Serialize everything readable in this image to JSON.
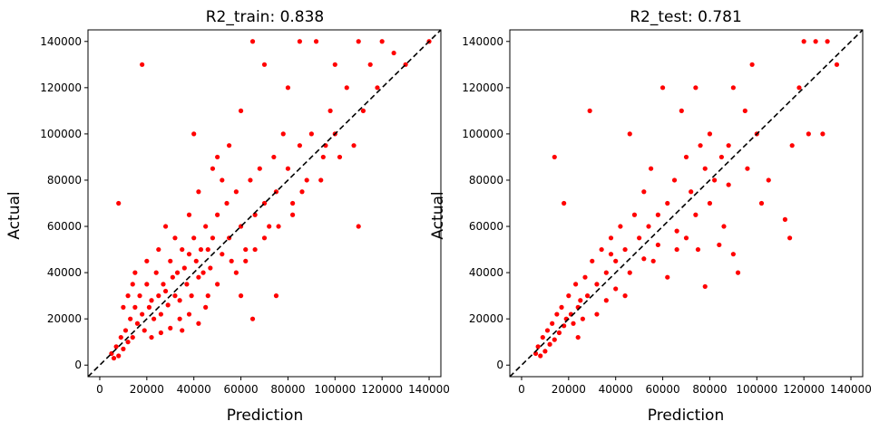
{
  "figure": {
    "background": "#ffffff",
    "point_color": "#ff0000",
    "line_color": "#000000"
  },
  "chart_data": [
    {
      "type": "scatter",
      "title": "R2_train: 0.838",
      "xlabel": "Prediction",
      "ylabel": "Actual",
      "xlim": [
        -5000,
        145000
      ],
      "ylim": [
        -5000,
        145000
      ],
      "xticks": [
        0,
        20000,
        40000,
        60000,
        80000,
        100000,
        120000,
        140000
      ],
      "yticks": [
        0,
        20000,
        40000,
        60000,
        80000,
        100000,
        120000,
        140000
      ],
      "grid": false,
      "reference_line": {
        "style": "dashed",
        "from": [
          -5000,
          -5000
        ],
        "to": [
          145000,
          145000
        ]
      },
      "series": [
        {
          "color": "#ff0000",
          "points": [
            [
              5000,
              5000
            ],
            [
              6000,
              3000
            ],
            [
              7000,
              8000
            ],
            [
              8000,
              4000
            ],
            [
              9000,
              12000
            ],
            [
              10000,
              7000
            ],
            [
              11000,
              15000
            ],
            [
              12000,
              10000
            ],
            [
              13000,
              20000
            ],
            [
              14000,
              12000
            ],
            [
              15000,
              25000
            ],
            [
              16000,
              18000
            ],
            [
              17000,
              30000
            ],
            [
              18000,
              22000
            ],
            [
              19000,
              15000
            ],
            [
              20000,
              35000
            ],
            [
              21000,
              25000
            ],
            [
              22000,
              28000
            ],
            [
              23000,
              20000
            ],
            [
              24000,
              40000
            ],
            [
              25000,
              30000
            ],
            [
              26000,
              22000
            ],
            [
              27000,
              35000
            ],
            [
              28000,
              32000
            ],
            [
              29000,
              26000
            ],
            [
              30000,
              45000
            ],
            [
              31000,
              38000
            ],
            [
              32000,
              30000
            ],
            [
              33000,
              40000
            ],
            [
              34000,
              28000
            ],
            [
              35000,
              50000
            ],
            [
              36000,
              42000
            ],
            [
              37000,
              35000
            ],
            [
              38000,
              48000
            ],
            [
              39000,
              30000
            ],
            [
              40000,
              55000
            ],
            [
              41000,
              45000
            ],
            [
              42000,
              38000
            ],
            [
              43000,
              50000
            ],
            [
              44000,
              40000
            ],
            [
              45000,
              60000
            ],
            [
              46000,
              50000
            ],
            [
              47000,
              42000
            ],
            [
              48000,
              55000
            ],
            [
              50000,
              65000
            ],
            [
              52000,
              48000
            ],
            [
              54000,
              70000
            ],
            [
              55000,
              55000
            ],
            [
              56000,
              45000
            ],
            [
              58000,
              75000
            ],
            [
              60000,
              60000
            ],
            [
              62000,
              50000
            ],
            [
              64000,
              80000
            ],
            [
              65000,
              140000
            ],
            [
              66000,
              65000
            ],
            [
              68000,
              85000
            ],
            [
              70000,
              70000
            ],
            [
              72000,
              60000
            ],
            [
              74000,
              90000
            ],
            [
              75000,
              75000
            ],
            [
              78000,
              100000
            ],
            [
              80000,
              85000
            ],
            [
              82000,
              70000
            ],
            [
              85000,
              95000
            ],
            [
              88000,
              80000
            ],
            [
              90000,
              100000
            ],
            [
              92000,
              140000
            ],
            [
              95000,
              90000
            ],
            [
              98000,
              110000
            ],
            [
              100000,
              100000
            ],
            [
              105000,
              120000
            ],
            [
              108000,
              95000
            ],
            [
              110000,
              140000
            ],
            [
              112000,
              110000
            ],
            [
              115000,
              130000
            ],
            [
              118000,
              120000
            ],
            [
              120000,
              140000
            ],
            [
              125000,
              135000
            ],
            [
              130000,
              130000
            ],
            [
              140000,
              140000
            ],
            [
              8000,
              70000
            ],
            [
              18000,
              130000
            ],
            [
              35000,
              15000
            ],
            [
              45000,
              25000
            ],
            [
              60000,
              30000
            ],
            [
              65000,
              20000
            ],
            [
              75000,
              30000
            ],
            [
              110000,
              60000
            ],
            [
              40000,
              100000
            ],
            [
              50000,
              90000
            ],
            [
              55000,
              95000
            ],
            [
              60000,
              110000
            ],
            [
              70000,
              130000
            ],
            [
              80000,
              120000
            ],
            [
              85000,
              140000
            ],
            [
              100000,
              130000
            ],
            [
              28000,
              60000
            ],
            [
              32000,
              55000
            ],
            [
              38000,
              65000
            ],
            [
              42000,
              75000
            ],
            [
              48000,
              85000
            ],
            [
              52000,
              80000
            ],
            [
              15000,
              40000
            ],
            [
              20000,
              45000
            ],
            [
              25000,
              50000
            ],
            [
              10000,
              25000
            ],
            [
              12000,
              30000
            ],
            [
              14000,
              35000
            ],
            [
              22000,
              12000
            ],
            [
              26000,
              14000
            ],
            [
              30000,
              16000
            ],
            [
              34000,
              20000
            ],
            [
              38000,
              22000
            ],
            [
              42000,
              18000
            ],
            [
              46000,
              30000
            ],
            [
              50000,
              35000
            ],
            [
              58000,
              40000
            ],
            [
              62000,
              45000
            ],
            [
              66000,
              50000
            ],
            [
              70000,
              55000
            ],
            [
              76000,
              60000
            ],
            [
              82000,
              65000
            ],
            [
              86000,
              75000
            ],
            [
              94000,
              80000
            ],
            [
              96000,
              95000
            ],
            [
              102000,
              90000
            ]
          ]
        }
      ]
    },
    {
      "type": "scatter",
      "title": "R2_test: 0.781",
      "xlabel": "Prediction",
      "ylabel": "Actual",
      "xlim": [
        -5000,
        145000
      ],
      "ylim": [
        -5000,
        145000
      ],
      "xticks": [
        0,
        20000,
        40000,
        60000,
        80000,
        100000,
        120000,
        140000
      ],
      "yticks": [
        0,
        20000,
        40000,
        60000,
        80000,
        100000,
        120000,
        140000
      ],
      "grid": false,
      "reference_line": {
        "style": "dashed",
        "from": [
          -5000,
          -5000
        ],
        "to": [
          145000,
          145000
        ]
      },
      "series": [
        {
          "color": "#ff0000",
          "points": [
            [
              6000,
              5000
            ],
            [
              7000,
              8000
            ],
            [
              8000,
              4000
            ],
            [
              9000,
              12000
            ],
            [
              10000,
              6000
            ],
            [
              11000,
              15000
            ],
            [
              12000,
              9000
            ],
            [
              13000,
              18000
            ],
            [
              14000,
              11000
            ],
            [
              15000,
              22000
            ],
            [
              16000,
              14000
            ],
            [
              17000,
              25000
            ],
            [
              18000,
              17000
            ],
            [
              19000,
              20000
            ],
            [
              20000,
              30000
            ],
            [
              21000,
              22000
            ],
            [
              22000,
              18000
            ],
            [
              23000,
              35000
            ],
            [
              24000,
              25000
            ],
            [
              25000,
              28000
            ],
            [
              26000,
              20000
            ],
            [
              27000,
              38000
            ],
            [
              28000,
              30000
            ],
            [
              29000,
              110000
            ],
            [
              30000,
              45000
            ],
            [
              32000,
              35000
            ],
            [
              34000,
              50000
            ],
            [
              36000,
              40000
            ],
            [
              38000,
              55000
            ],
            [
              40000,
              45000
            ],
            [
              42000,
              60000
            ],
            [
              44000,
              50000
            ],
            [
              46000,
              100000
            ],
            [
              48000,
              65000
            ],
            [
              50000,
              55000
            ],
            [
              52000,
              75000
            ],
            [
              54000,
              60000
            ],
            [
              55000,
              85000
            ],
            [
              58000,
              65000
            ],
            [
              60000,
              120000
            ],
            [
              62000,
              70000
            ],
            [
              65000,
              80000
            ],
            [
              68000,
              110000
            ],
            [
              70000,
              90000
            ],
            [
              72000,
              75000
            ],
            [
              74000,
              120000
            ],
            [
              76000,
              95000
            ],
            [
              78000,
              85000
            ],
            [
              80000,
              100000
            ],
            [
              82000,
              80000
            ],
            [
              85000,
              90000
            ],
            [
              88000,
              95000
            ],
            [
              90000,
              120000
            ],
            [
              92000,
              40000
            ],
            [
              95000,
              110000
            ],
            [
              98000,
              130000
            ],
            [
              100000,
              100000
            ],
            [
              102000,
              70000
            ],
            [
              105000,
              80000
            ],
            [
              112000,
              63000
            ],
            [
              114000,
              55000
            ],
            [
              115000,
              95000
            ],
            [
              118000,
              120000
            ],
            [
              120000,
              140000
            ],
            [
              122000,
              100000
            ],
            [
              125000,
              140000
            ],
            [
              128000,
              100000
            ],
            [
              130000,
              140000
            ],
            [
              134000,
              130000
            ],
            [
              14000,
              90000
            ],
            [
              18000,
              70000
            ],
            [
              38000,
              48000
            ],
            [
              44000,
              30000
            ],
            [
              56000,
              45000
            ],
            [
              62000,
              38000
            ],
            [
              66000,
              50000
            ],
            [
              70000,
              55000
            ],
            [
              75000,
              50000
            ],
            [
              78000,
              34000
            ],
            [
              84000,
              52000
            ],
            [
              86000,
              60000
            ],
            [
              90000,
              48000
            ],
            [
              24000,
              12000
            ],
            [
              32000,
              22000
            ],
            [
              36000,
              28000
            ],
            [
              40000,
              33000
            ],
            [
              46000,
              40000
            ],
            [
              52000,
              46000
            ],
            [
              58000,
              52000
            ],
            [
              66000,
              58000
            ],
            [
              74000,
              65000
            ],
            [
              80000,
              70000
            ],
            [
              88000,
              78000
            ],
            [
              96000,
              85000
            ]
          ]
        }
      ]
    }
  ]
}
